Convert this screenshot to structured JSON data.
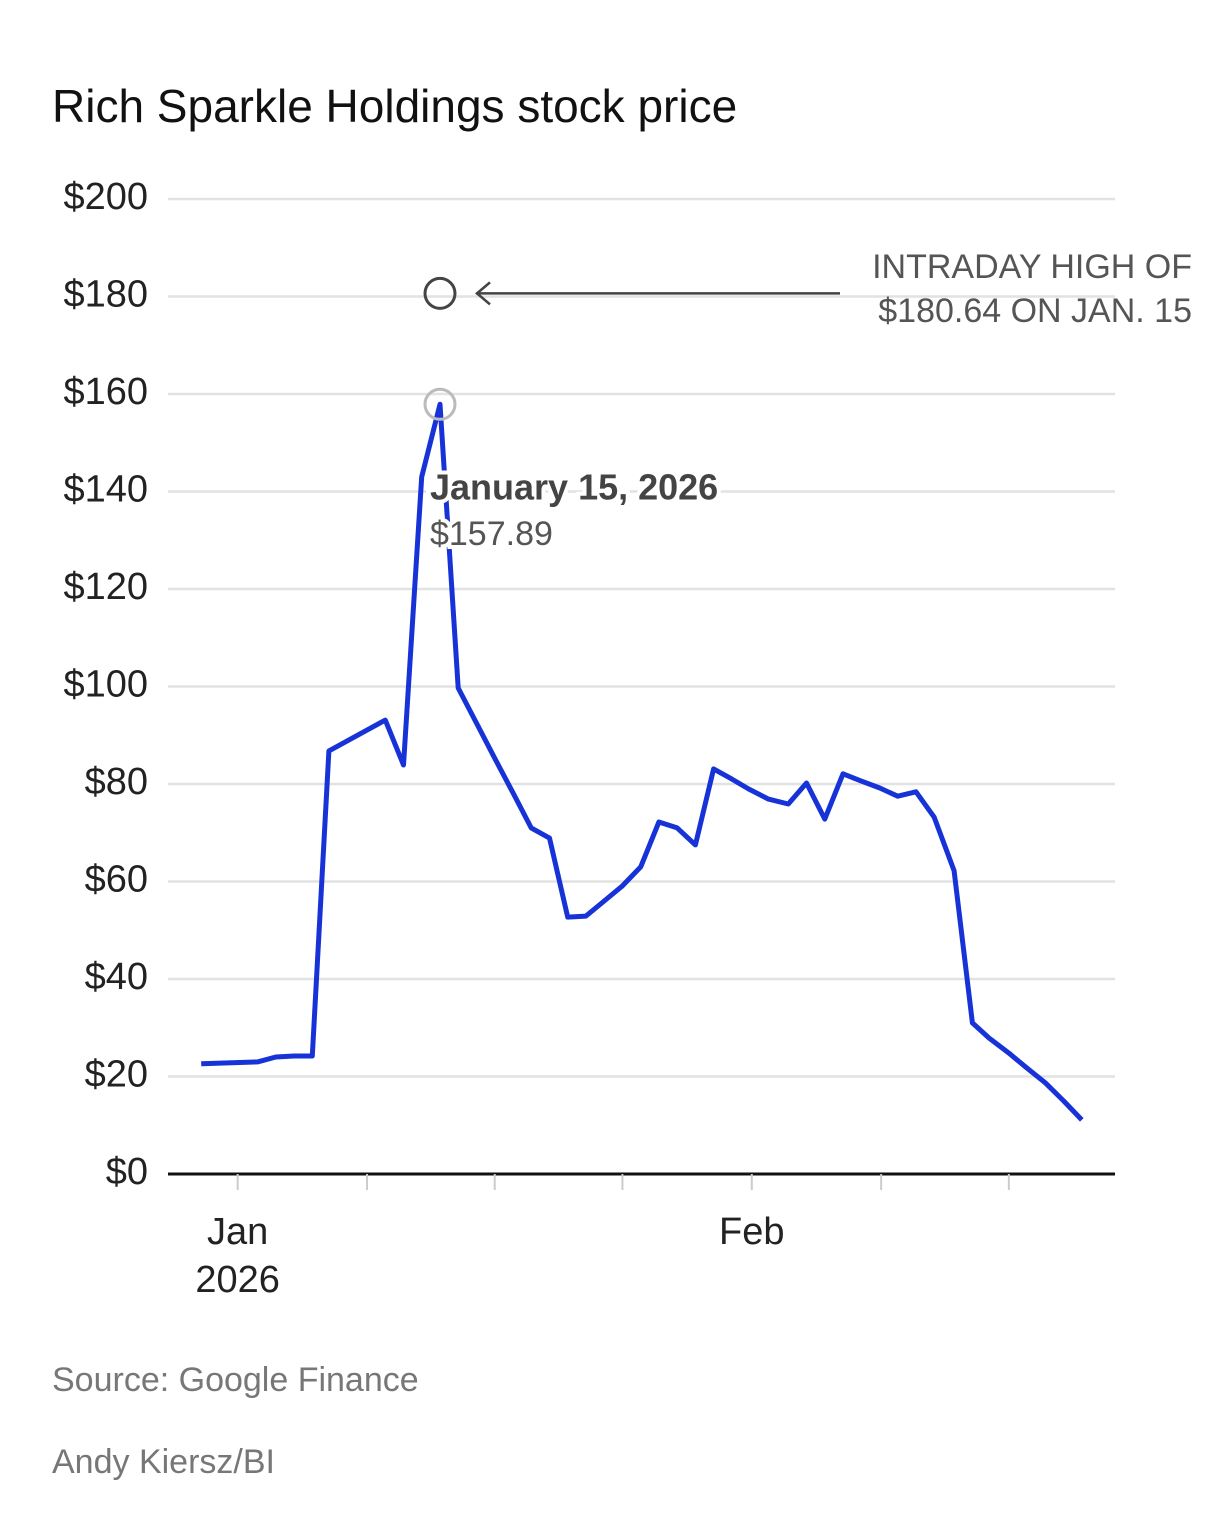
{
  "chart_data": {
    "type": "line",
    "title": "Rich Sparkle Holdings stock price",
    "x": [
      -2.2,
      1.2,
      2.3,
      3.4,
      4.5,
      5.5,
      8.9,
      10.0,
      11.1,
      12.2,
      13.3,
      14.4,
      15.5,
      16.6,
      17.7,
      18.8,
      19.9,
      21.0,
      22.1,
      23.2,
      24.3,
      25.4,
      26.5,
      27.6,
      28.7,
      29.8,
      30.8,
      32.0,
      33.2,
      34.3,
      35.4,
      36.5,
      37.6,
      38.7,
      39.8,
      40.9,
      42.0,
      43.2,
      44.3,
      45.3,
      46.5,
      47.6,
      48.7,
      49.8,
      50.9
    ],
    "series": [
      {
        "name": "Rich Sparkle Holdings",
        "color": "#1733d8",
        "values": [
          22.6,
          23.0,
          24.0,
          24.2,
          24.2,
          86.8,
          93.1,
          83.9,
          143,
          157.89,
          99.7,
          92.5,
          85.3,
          78.2,
          71.0,
          68.9,
          52.7,
          52.9,
          56.0,
          59.1,
          63.0,
          72.2,
          71.0,
          67.5,
          83.1,
          81.0,
          79.0,
          76.9,
          75.9,
          80.2,
          72.8,
          82.1,
          80.6,
          79.2,
          77.5,
          78.4,
          73.2,
          62.2,
          31.0,
          27.9,
          24.8,
          21.7,
          18.7,
          15.0,
          11.1
        ]
      }
    ],
    "xlim": [
      -4.2,
      52.9
    ],
    "xticks": [
      {
        "value": 0,
        "label": "Jan\n2026"
      },
      {
        "value": 31,
        "label": "Feb"
      }
    ],
    "xminor_ticks": [
      7.8,
      15.5,
      23.2,
      38.8,
      46.5
    ],
    "ylim": [
      0,
      200
    ],
    "yticks": [
      {
        "value": 0,
        "label": "$0"
      },
      {
        "value": 20,
        "label": "$20"
      },
      {
        "value": 40,
        "label": "$40"
      },
      {
        "value": 60,
        "label": "$60"
      },
      {
        "value": 80,
        "label": "$80"
      },
      {
        "value": 100,
        "label": "$100"
      },
      {
        "value": 120,
        "label": "$120"
      },
      {
        "value": 140,
        "label": "$140"
      },
      {
        "value": 160,
        "label": "$160"
      },
      {
        "value": 180,
        "label": "$180"
      },
      {
        "value": 200,
        "label": "$200"
      }
    ],
    "grid": true,
    "highlight": {
      "date_label": "January 15, 2026",
      "value_label": "$157.89"
    },
    "intraday_high": {
      "x": 12.2,
      "value": 180.64,
      "label_lines": [
        "INTRADAY HIGH OF",
        "$180.64 ON JAN. 15"
      ]
    },
    "source": "Source: Google Finance",
    "credit": "Andy Kiersz/BI"
  }
}
